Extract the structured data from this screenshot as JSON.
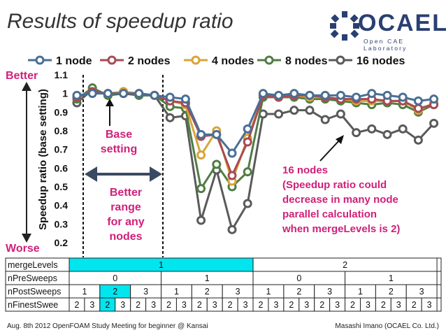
{
  "slide": {
    "title": "Results of speedup ratio",
    "logo_text": "OCAEL",
    "logo_subtext": "Open CAE Laboratory",
    "footer_left": "Aug. 8th 2012 OpenFOAM Study Meeting for beginner @ Kansai",
    "footer_right": "Masashi Imano (OCAEL Co. Ltd.)"
  },
  "chart_data": {
    "type": "line",
    "title": "",
    "xlabel": "",
    "ylabel": "Speedup ratio (base setting)",
    "ylim": [
      0.2,
      1.1
    ],
    "yticks": [
      "0.2",
      "0.3",
      "0.4",
      "0.5",
      "0.6",
      "0.7",
      "0.8",
      "0.9",
      "1",
      "1.1"
    ],
    "legend_position": "top",
    "x_count": 24,
    "series": [
      {
        "name": "1 node",
        "color": "#4a6f95",
        "values": [
          0.99,
          1.0,
          1.0,
          1.0,
          1.0,
          0.99,
          0.98,
          0.97,
          0.78,
          0.78,
          0.68,
          0.81,
          1.0,
          0.99,
          1.0,
          0.99,
          0.99,
          0.99,
          0.98,
          1.0,
          0.99,
          0.98,
          0.96,
          0.97
        ]
      },
      {
        "name": "2 nodes",
        "color": "#a84a54",
        "values": [
          0.98,
          1.01,
          1.0,
          1.0,
          1.0,
          0.99,
          0.96,
          0.95,
          0.77,
          0.78,
          0.56,
          0.74,
          0.99,
          0.98,
          0.99,
          0.99,
          0.98,
          0.97,
          0.97,
          0.97,
          0.96,
          0.96,
          0.92,
          0.94
        ]
      },
      {
        "name": "4 nodes",
        "color": "#d9a43a",
        "values": [
          0.98,
          1.01,
          1.0,
          1.01,
          1.0,
          0.99,
          0.96,
          0.94,
          0.67,
          0.8,
          0.53,
          0.76,
          0.99,
          0.98,
          0.99,
          0.98,
          0.98,
          0.97,
          0.96,
          0.96,
          0.96,
          0.96,
          0.91,
          0.95
        ]
      },
      {
        "name": "8 nodes",
        "color": "#4f7d43",
        "values": [
          0.97,
          1.03,
          0.99,
          1.01,
          0.99,
          0.99,
          0.93,
          0.92,
          0.49,
          0.62,
          0.5,
          0.58,
          0.98,
          0.98,
          0.98,
          0.97,
          0.97,
          0.96,
          0.95,
          0.94,
          0.95,
          0.94,
          0.9,
          0.94
        ]
      },
      {
        "name": "16 nodes",
        "color": "#5a5a5a",
        "values": [
          0.95,
          1.02,
          0.99,
          1.0,
          0.99,
          0.99,
          0.87,
          0.88,
          0.32,
          0.59,
          0.27,
          0.41,
          0.89,
          0.89,
          0.91,
          0.91,
          0.86,
          0.89,
          0.79,
          0.81,
          0.78,
          0.81,
          0.75,
          0.84
        ]
      }
    ],
    "annotations": {
      "better": "Better",
      "worse": "Worse",
      "base_setting": [
        "Base",
        "setting"
      ],
      "better_range": [
        "Better",
        "range",
        "for any",
        "nodes"
      ],
      "sixteen_note": [
        "16 nodes",
        "(Speedup ratio could",
        "decrease in many node",
        "parallel calculation",
        "when mergeLevels is 2)"
      ]
    },
    "param_table": {
      "rows": [
        {
          "label": "mergeLevels",
          "groups": [
            {
              "text": "1",
              "span": 12,
              "highlight": true
            },
            {
              "text": "2",
              "span": 12,
              "highlight": false
            }
          ]
        },
        {
          "label": "nPreSweeps",
          "groups": [
            {
              "text": "0",
              "span": 6
            },
            {
              "text": "1",
              "span": 6
            },
            {
              "text": "0",
              "span": 6
            },
            {
              "text": "1",
              "span": 6
            }
          ]
        },
        {
          "label": "nPostSweeps",
          "groups": [
            {
              "text": "1",
              "span": 2
            },
            {
              "text": "2",
              "span": 2,
              "highlight": true
            },
            {
              "text": "3",
              "span": 2
            },
            {
              "text": "1",
              "span": 2
            },
            {
              "text": "2",
              "span": 2
            },
            {
              "text": "3",
              "span": 2
            },
            {
              "text": "1",
              "span": 2
            },
            {
              "text": "2",
              "span": 2
            },
            {
              "text": "3",
              "span": 2
            },
            {
              "text": "1",
              "span": 2
            },
            {
              "text": "2",
              "span": 2
            },
            {
              "text": "3",
              "span": 2
            }
          ]
        },
        {
          "label": "nFinestSwee",
          "groups": [
            {
              "text": "2",
              "span": 1
            },
            {
              "text": "3",
              "span": 1
            },
            {
              "text": "2",
              "span": 1,
              "highlight": true
            },
            {
              "text": "3",
              "span": 1
            },
            {
              "text": "2",
              "span": 1
            },
            {
              "text": "3",
              "span": 1
            },
            {
              "text": "2",
              "span": 1
            },
            {
              "text": "3",
              "span": 1
            },
            {
              "text": "2",
              "span": 1
            },
            {
              "text": "3",
              "span": 1
            },
            {
              "text": "2",
              "span": 1
            },
            {
              "text": "3",
              "span": 1
            },
            {
              "text": "2",
              "span": 1
            },
            {
              "text": "3",
              "span": 1
            },
            {
              "text": "2",
              "span": 1
            },
            {
              "text": "3",
              "span": 1
            },
            {
              "text": "2",
              "span": 1
            },
            {
              "text": "3",
              "span": 1
            },
            {
              "text": "2",
              "span": 1
            },
            {
              "text": "3",
              "span": 1
            },
            {
              "text": "2",
              "span": 1
            },
            {
              "text": "3",
              "span": 1
            },
            {
              "text": "2",
              "span": 1
            },
            {
              "text": "3",
              "span": 1
            }
          ]
        }
      ],
      "highlight_color": "#00e5ee"
    }
  }
}
